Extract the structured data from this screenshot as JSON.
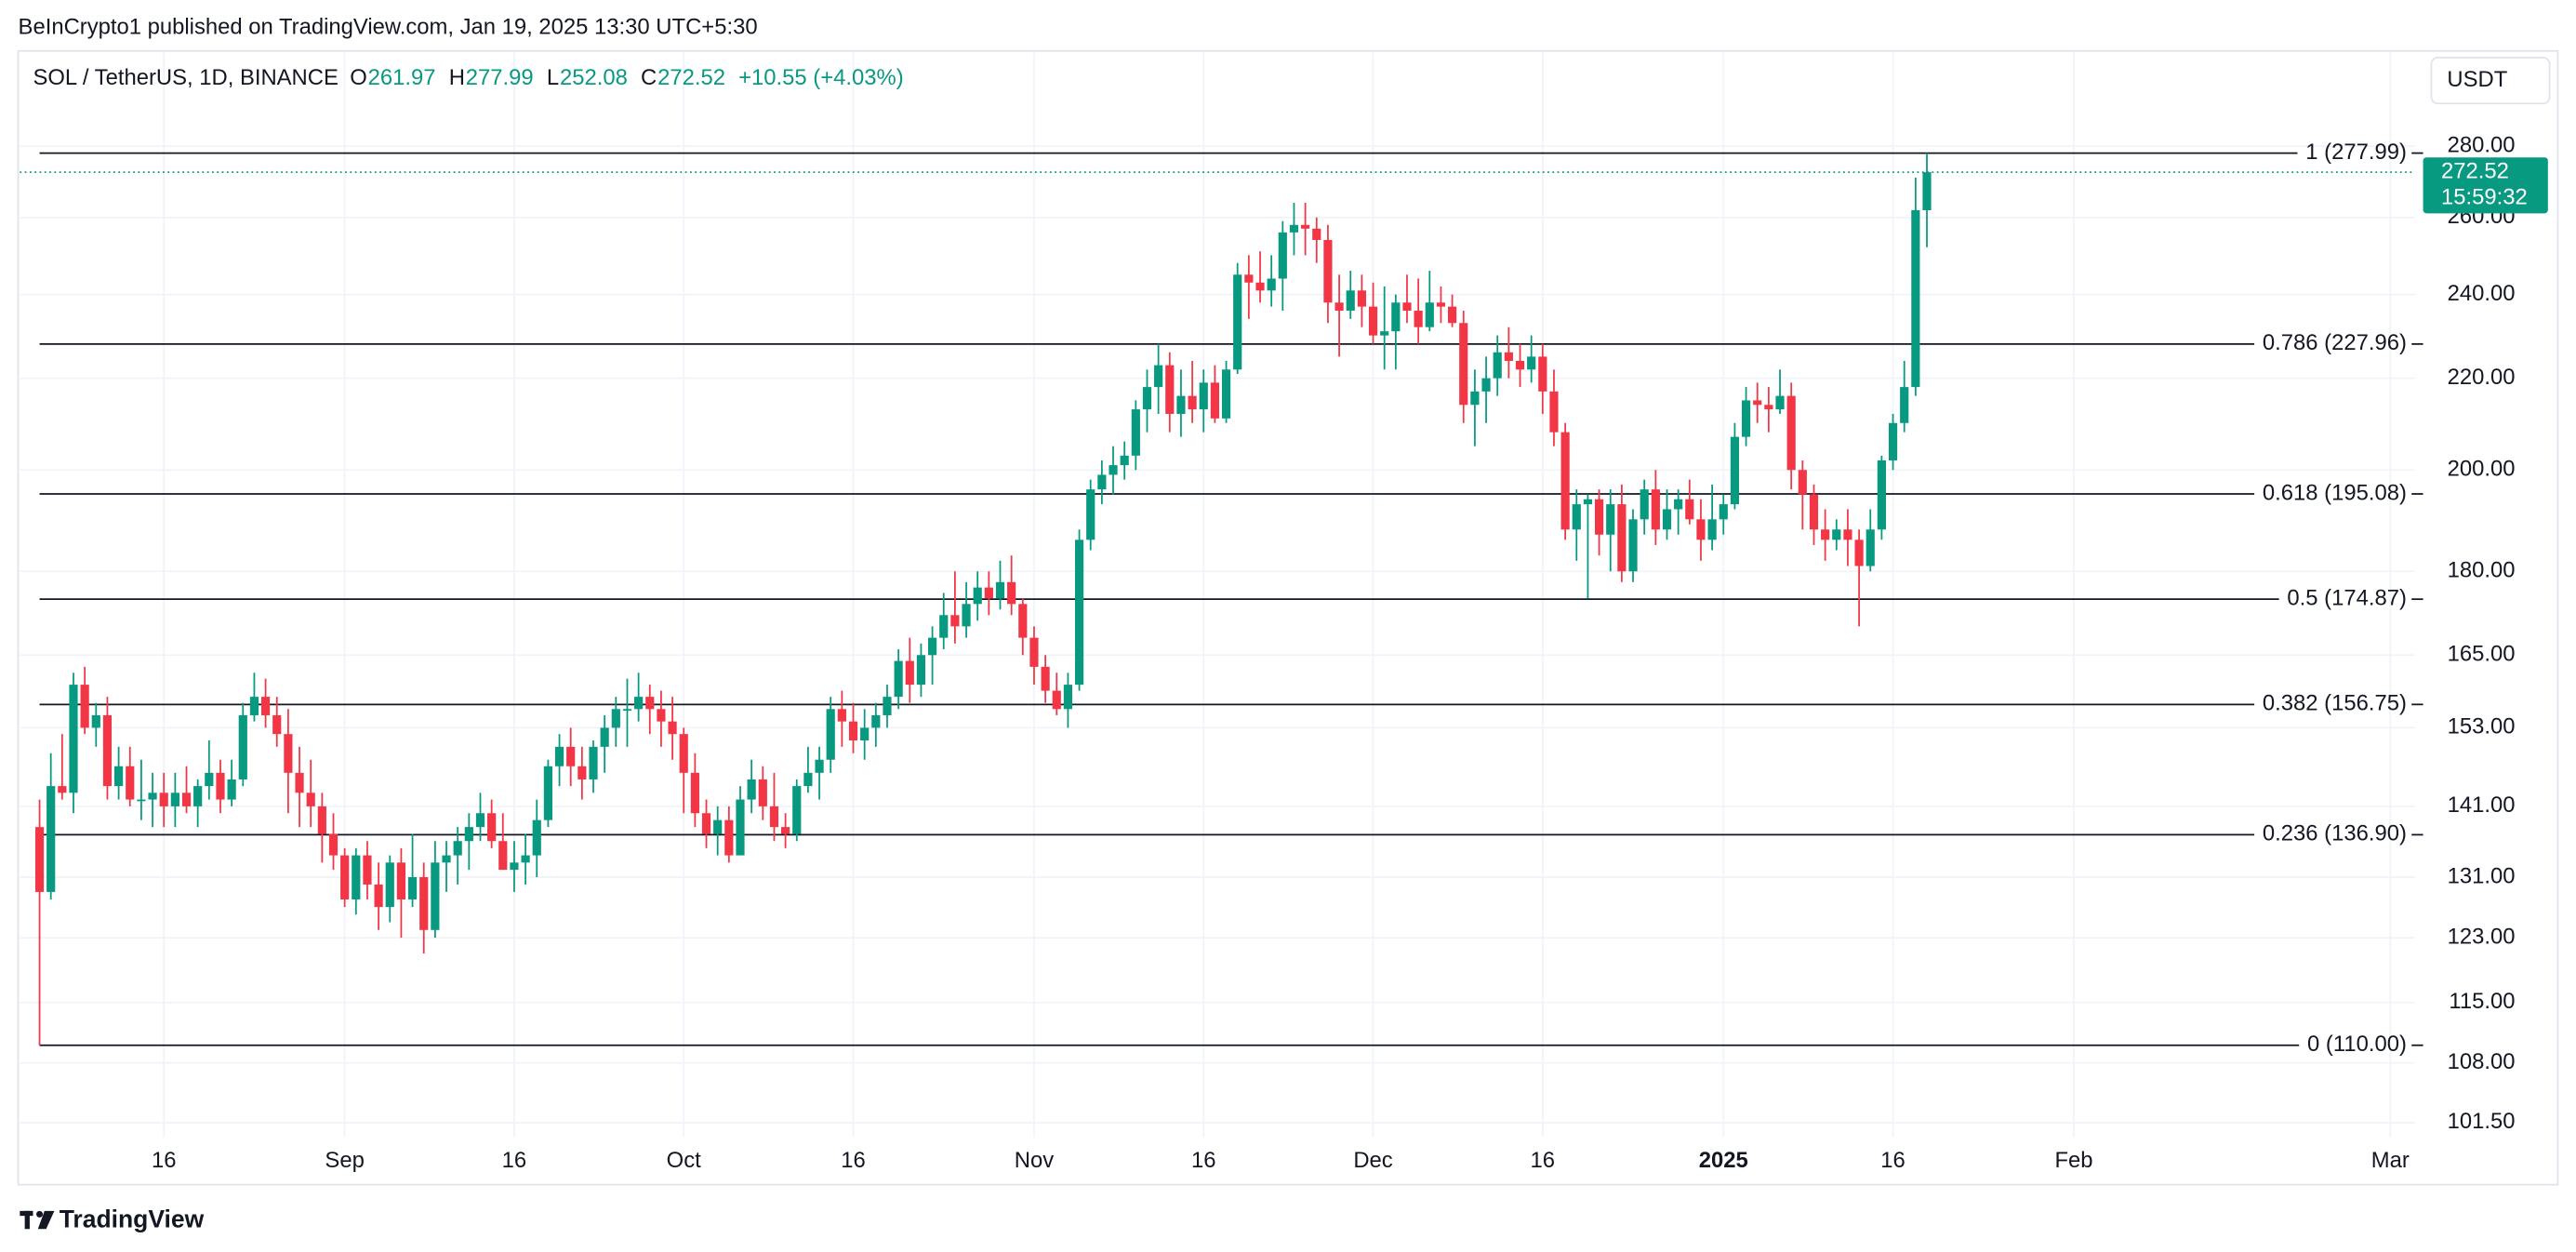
{
  "chart_data": {
    "type": "candlestick",
    "published": "BeInCrypto1 published on TradingView.com, Jan 19, 2025 13:30 UTC+5:30",
    "symbol": "SOL / TetherUS, 1D, BINANCE",
    "ohlc_labels": [
      "O",
      "H",
      "L",
      "C"
    ],
    "change": "+10.55 (+4.03%)",
    "currency": "USDT",
    "countdown": "15:59:32",
    "brand": "TradingView",
    "up_color": "#089981",
    "down_color": "#f23645",
    "level_color": "#131722",
    "log_scale": true,
    "grid": true,
    "ylim": [
      100,
      308.6
    ],
    "yticks": [
      {
        "value": 101.5,
        "label": "101.50"
      },
      {
        "value": 108,
        "label": "108.00"
      },
      {
        "value": 115,
        "label": "115.00"
      },
      {
        "value": 123,
        "label": "123.00"
      },
      {
        "value": 131,
        "label": "131.00"
      },
      {
        "value": 141,
        "label": "141.00"
      },
      {
        "value": 153,
        "label": "153.00"
      },
      {
        "value": 165,
        "label": "165.00"
      },
      {
        "value": 180,
        "label": "180.00"
      },
      {
        "value": 200,
        "label": "200.00"
      },
      {
        "value": 220,
        "label": "220.00"
      },
      {
        "value": 240,
        "label": "240.00"
      },
      {
        "value": 260,
        "label": "260.00"
      },
      {
        "value": 280,
        "label": "280.00"
      }
    ],
    "levels": [
      {
        "value": 277.99,
        "label": "1 (277.99)"
      },
      {
        "value": 227.96,
        "label": "0.786 (227.96)"
      },
      {
        "value": 195.08,
        "label": "0.618 (195.08)"
      },
      {
        "value": 174.87,
        "label": "0.5 (174.87)"
      },
      {
        "value": 156.75,
        "label": "0.382 (156.75)"
      },
      {
        "value": 136.9,
        "label": "0.236 (136.90)"
      },
      {
        "value": 110,
        "label": "0 (110.00)"
      }
    ],
    "categories": [
      null,
      null,
      null,
      null,
      null,
      null,
      null,
      null,
      null,
      null,
      null,
      "16",
      null,
      null,
      null,
      null,
      null,
      null,
      null,
      null,
      null,
      null,
      null,
      null,
      null,
      null,
      null,
      "Sep",
      null,
      null,
      null,
      null,
      null,
      null,
      null,
      null,
      null,
      null,
      null,
      null,
      null,
      null,
      "16",
      null,
      null,
      null,
      null,
      null,
      null,
      null,
      null,
      null,
      null,
      null,
      null,
      null,
      null,
      "Oct",
      null,
      null,
      null,
      null,
      null,
      null,
      null,
      null,
      null,
      null,
      null,
      null,
      null,
      null,
      "16",
      null,
      null,
      null,
      null,
      null,
      null,
      null,
      null,
      null,
      null,
      null,
      null,
      null,
      null,
      null,
      "Nov",
      null,
      null,
      null,
      null,
      null,
      null,
      null,
      null,
      null,
      null,
      null,
      null,
      null,
      null,
      "16",
      null,
      null,
      null,
      null,
      null,
      null,
      null,
      null,
      null,
      null,
      null,
      null,
      null,
      null,
      "Dec",
      null,
      null,
      null,
      null,
      null,
      null,
      null,
      null,
      null,
      null,
      null,
      null,
      null,
      null,
      "16",
      null,
      null,
      null,
      null,
      null,
      null,
      null,
      null,
      null,
      null,
      null,
      null,
      null,
      null,
      null,
      "2025",
      null,
      null,
      null,
      null,
      null,
      null,
      null,
      null,
      null,
      null,
      null,
      null,
      null,
      null,
      "16",
      null,
      null,
      null,
      null,
      null,
      null,
      null,
      null,
      null,
      null,
      null,
      null,
      null,
      null,
      null,
      "Feb",
      null,
      null,
      null,
      null,
      null,
      null,
      null,
      null,
      null,
      null,
      null,
      null,
      null,
      null,
      null,
      null,
      null,
      null,
      null,
      null,
      null,
      null,
      null,
      null,
      null,
      null,
      null,
      "Mar"
    ],
    "ohlc": [
      [
        138,
        142,
        110,
        129
      ],
      [
        129,
        149,
        128,
        144
      ],
      [
        144,
        152,
        142,
        143
      ],
      [
        143,
        162,
        140,
        160
      ],
      [
        160,
        163,
        152,
        153
      ],
      [
        153,
        157,
        150,
        155
      ],
      [
        155,
        158,
        142,
        144
      ],
      [
        144,
        150,
        142,
        147
      ],
      [
        147,
        150,
        141,
        142
      ],
      [
        142,
        148,
        139,
        142
      ],
      [
        142,
        146,
        138,
        143
      ],
      [
        143,
        146,
        138,
        141
      ],
      [
        141,
        146,
        138,
        143
      ],
      [
        143,
        147,
        140,
        141
      ],
      [
        141,
        145,
        138,
        144
      ],
      [
        144,
        151,
        142,
        146
      ],
      [
        146,
        148,
        140,
        142
      ],
      [
        142,
        148,
        141,
        145
      ],
      [
        145,
        157,
        144,
        155
      ],
      [
        155,
        162,
        154,
        158
      ],
      [
        158,
        161,
        153,
        155
      ],
      [
        155,
        158,
        150,
        152
      ],
      [
        152,
        156,
        140,
        146
      ],
      [
        146,
        150,
        138,
        143
      ],
      [
        143,
        148,
        138,
        141
      ],
      [
        141,
        143,
        133,
        137
      ],
      [
        137,
        140,
        132,
        134
      ],
      [
        134,
        135,
        127,
        128
      ],
      [
        128,
        135,
        126,
        134
      ],
      [
        134,
        136,
        128,
        130
      ],
      [
        130,
        133,
        124,
        127
      ],
      [
        127,
        134,
        125,
        133
      ],
      [
        133,
        135,
        123,
        128
      ],
      [
        128,
        137,
        127,
        131
      ],
      [
        131,
        133,
        121,
        124
      ],
      [
        124,
        136,
        123,
        133
      ],
      [
        133,
        136,
        129,
        134
      ],
      [
        134,
        138,
        130,
        136
      ],
      [
        136,
        140,
        132,
        138
      ],
      [
        138,
        143,
        136,
        140
      ],
      [
        140,
        142,
        135,
        136
      ],
      [
        136,
        140,
        132,
        132
      ],
      [
        132,
        136,
        129,
        133
      ],
      [
        133,
        137,
        130,
        134
      ],
      [
        134,
        142,
        131,
        139
      ],
      [
        139,
        148,
        138,
        147
      ],
      [
        147,
        152,
        144,
        150
      ],
      [
        150,
        153,
        144,
        147
      ],
      [
        147,
        150,
        142,
        145
      ],
      [
        145,
        151,
        143,
        150
      ],
      [
        150,
        155,
        146,
        153
      ],
      [
        153,
        158,
        150,
        156
      ],
      [
        156,
        161,
        150,
        156
      ],
      [
        156,
        162,
        154,
        158
      ],
      [
        158,
        160,
        152,
        156
      ],
      [
        156,
        159,
        150,
        154
      ],
      [
        154,
        158,
        148,
        152
      ],
      [
        152,
        153,
        140,
        146
      ],
      [
        146,
        149,
        138,
        140
      ],
      [
        140,
        142,
        135,
        137
      ],
      [
        137,
        141,
        134,
        139
      ],
      [
        139,
        141,
        133,
        134
      ],
      [
        134,
        144,
        134,
        142
      ],
      [
        142,
        148,
        140,
        145
      ],
      [
        145,
        147,
        139,
        141
      ],
      [
        141,
        146,
        136,
        138
      ],
      [
        138,
        140,
        135,
        137
      ],
      [
        137,
        145,
        136,
        144
      ],
      [
        144,
        150,
        143,
        146
      ],
      [
        146,
        150,
        142,
        148
      ],
      [
        148,
        158,
        146,
        156
      ],
      [
        156,
        159,
        150,
        154
      ],
      [
        154,
        157,
        149,
        151
      ],
      [
        151,
        156,
        148,
        153
      ],
      [
        153,
        157,
        150,
        155
      ],
      [
        155,
        160,
        153,
        158
      ],
      [
        158,
        166,
        156,
        164
      ],
      [
        164,
        168,
        157,
        160
      ],
      [
        160,
        167,
        158,
        165
      ],
      [
        165,
        170,
        160,
        168
      ],
      [
        168,
        176,
        166,
        172
      ],
      [
        172,
        180,
        167,
        170
      ],
      [
        170,
        178,
        168,
        174
      ],
      [
        174,
        180,
        171,
        177
      ],
      [
        177,
        180,
        172,
        175
      ],
      [
        175,
        182,
        173,
        178
      ],
      [
        178,
        183,
        172,
        174
      ],
      [
        174,
        175,
        165,
        168
      ],
      [
        168,
        170,
        160,
        163
      ],
      [
        163,
        165,
        157,
        159
      ],
      [
        159,
        162,
        155,
        156
      ],
      [
        156,
        162,
        153,
        160
      ],
      [
        160,
        188,
        159,
        186
      ],
      [
        186,
        198,
        184,
        196
      ],
      [
        196,
        202,
        193,
        199
      ],
      [
        199,
        205,
        195,
        201
      ],
      [
        201,
        206,
        198,
        203
      ],
      [
        203,
        215,
        200,
        213
      ],
      [
        213,
        222,
        208,
        218
      ],
      [
        218,
        228,
        212,
        223
      ],
      [
        223,
        226,
        208,
        212
      ],
      [
        212,
        222,
        207,
        216
      ],
      [
        216,
        224,
        210,
        213
      ],
      [
        213,
        222,
        208,
        219
      ],
      [
        219,
        223,
        210,
        211
      ],
      [
        211,
        224,
        210,
        222
      ],
      [
        222,
        248,
        221,
        245
      ],
      [
        245,
        250,
        234,
        243
      ],
      [
        243,
        251,
        238,
        241
      ],
      [
        241,
        250,
        237,
        244
      ],
      [
        244,
        259,
        236,
        256
      ],
      [
        256,
        264,
        250,
        258
      ],
      [
        258,
        264,
        250,
        257
      ],
      [
        257,
        260,
        248,
        254
      ],
      [
        254,
        258,
        233,
        238
      ],
      [
        238,
        245,
        225,
        236
      ],
      [
        236,
        246,
        234,
        241
      ],
      [
        241,
        245,
        232,
        237
      ],
      [
        237,
        243,
        228,
        230
      ],
      [
        230,
        242,
        222,
        231
      ],
      [
        231,
        240,
        222,
        238
      ],
      [
        238,
        245,
        233,
        236
      ],
      [
        236,
        244,
        228,
        232
      ],
      [
        232,
        246,
        231,
        238
      ],
      [
        238,
        242,
        233,
        237
      ],
      [
        237,
        240,
        232,
        233
      ],
      [
        233,
        236,
        210,
        214
      ],
      [
        214,
        222,
        205,
        217
      ],
      [
        217,
        225,
        210,
        220
      ],
      [
        220,
        230,
        216,
        226
      ],
      [
        226,
        232,
        220,
        224
      ],
      [
        224,
        228,
        218,
        222
      ],
      [
        222,
        230,
        219,
        225
      ],
      [
        225,
        228,
        212,
        217
      ],
      [
        217,
        222,
        205,
        208
      ],
      [
        208,
        210,
        186,
        188
      ],
      [
        188,
        196,
        182,
        193
      ],
      [
        193,
        195,
        175,
        194
      ],
      [
        194,
        196,
        183,
        187
      ],
      [
        187,
        196,
        180,
        193
      ],
      [
        193,
        197,
        178,
        180
      ],
      [
        180,
        192,
        178,
        190
      ],
      [
        190,
        198,
        187,
        196
      ],
      [
        196,
        200,
        185,
        188
      ],
      [
        188,
        196,
        186,
        192
      ],
      [
        192,
        196,
        187,
        194
      ],
      [
        194,
        198,
        189,
        190
      ],
      [
        190,
        194,
        182,
        186
      ],
      [
        186,
        197,
        184,
        190
      ],
      [
        190,
        195,
        187,
        193
      ],
      [
        193,
        210,
        192,
        207
      ],
      [
        207,
        218,
        205,
        215
      ],
      [
        215,
        219,
        210,
        214
      ],
      [
        214,
        218,
        208,
        213
      ],
      [
        213,
        222,
        212,
        216
      ],
      [
        216,
        219,
        196,
        200
      ],
      [
        200,
        202,
        188,
        195
      ],
      [
        195,
        197,
        185,
        188
      ],
      [
        188,
        192,
        182,
        186
      ],
      [
        186,
        190,
        184,
        188
      ],
      [
        188,
        192,
        181,
        186
      ],
      [
        186,
        188,
        170,
        181
      ],
      [
        181,
        192,
        180,
        188
      ],
      [
        188,
        203,
        186,
        202
      ],
      [
        202,
        212,
        200,
        210
      ],
      [
        210,
        224,
        208,
        218
      ],
      [
        218,
        271,
        216,
        262
      ],
      [
        261.97,
        277.99,
        252.08,
        272.52
      ],
      null,
      null,
      null,
      null,
      null,
      null,
      null,
      null,
      null,
      null,
      null,
      null,
      null,
      null,
      null,
      null,
      null,
      null,
      null,
      null,
      null,
      null,
      null,
      null,
      null,
      null,
      null,
      null,
      null,
      null,
      null,
      null,
      null,
      null,
      null,
      null,
      null,
      null,
      null,
      null,
      null
    ]
  }
}
